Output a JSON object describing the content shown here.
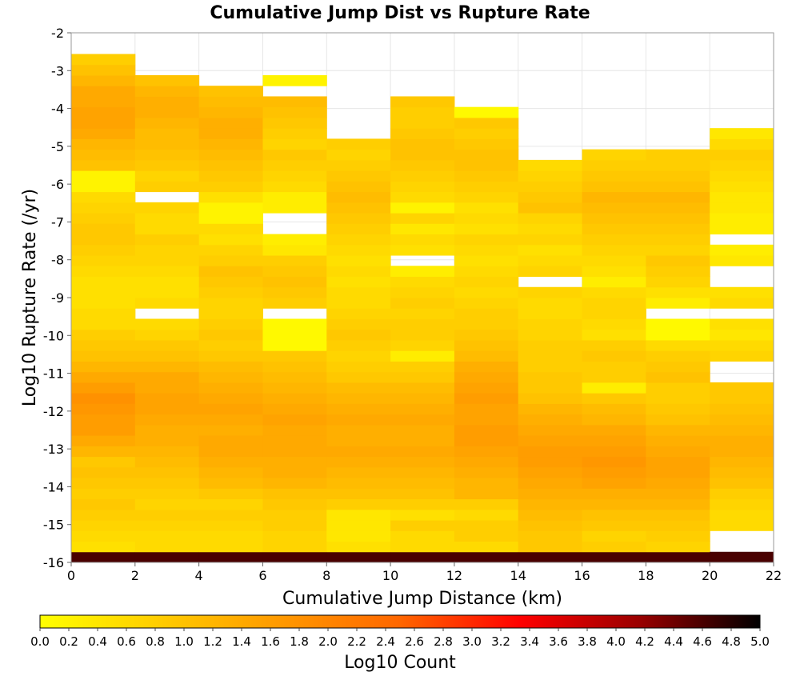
{
  "chart_data": {
    "type": "heatmap",
    "title": "Cumulative Jump Dist vs Rupture Rate",
    "xlabel": "Cumulative Jump Distance (km)",
    "ylabel": "Log10 Rupture Rate (/yr)",
    "xlim": [
      0,
      22
    ],
    "ylim": [
      -16,
      -2
    ],
    "x_ticks": [
      0,
      2,
      4,
      6,
      8,
      10,
      12,
      14,
      16,
      18,
      20,
      22
    ],
    "y_ticks": [
      -2,
      -3,
      -4,
      -5,
      -6,
      -7,
      -8,
      -9,
      -10,
      -11,
      -12,
      -13,
      -14,
      -15,
      -16
    ],
    "x_bin_width": 2,
    "y_bin_height": 0.28,
    "colorbar": {
      "label": "Log10 Count",
      "range": [
        0,
        5
      ],
      "ticks": [
        "0.0",
        "0.2",
        "0.4",
        "0.6",
        "0.8",
        "1.0",
        "1.2",
        "1.4",
        "1.6",
        "1.8",
        "2.0",
        "2.2",
        "2.4",
        "2.6",
        "2.8",
        "3.0",
        "3.2",
        "3.4",
        "3.6",
        "3.8",
        "4.0",
        "4.2",
        "4.4",
        "4.6",
        "4.8",
        "5.0"
      ],
      "colors": [
        "#ffff00",
        "#ffcc00",
        "#ff9900",
        "#ff6600",
        "#ff0000",
        "#990000",
        "#000000"
      ]
    },
    "columns": [
      {
        "x0": 0,
        "y_bottom": -16,
        "values": [
          4.6,
          0.5,
          0.6,
          0.7,
          0.8,
          0.9,
          0.8,
          0.9,
          1.0,
          0.9,
          1.2,
          1.4,
          1.6,
          1.6,
          1.7,
          1.8,
          1.6,
          1.4,
          1.2,
          1.0,
          0.9,
          0.8,
          0.6,
          0.6,
          0.5,
          0.5,
          0.5,
          0.6,
          0.7,
          0.8,
          0.9,
          0.9,
          0.8,
          0.7,
          0.6,
          0.2,
          0.2,
          1.0,
          1.1,
          1.2,
          1.4,
          1.5,
          1.5,
          1.4,
          1.4,
          1.2,
          1.0,
          0.8
        ]
      },
      {
        "x0": 2,
        "y_bottom": -16,
        "values": [
          4.6,
          0.6,
          0.6,
          0.7,
          0.8,
          0.7,
          0.8,
          0.9,
          1.0,
          1.1,
          1.2,
          1.3,
          1.3,
          1.4,
          1.5,
          1.5,
          1.4,
          1.4,
          1.2,
          1.0,
          0.9,
          0.7,
          0.6,
          null,
          0.6,
          0.5,
          0.5,
          0.6,
          0.7,
          0.7,
          0.8,
          0.6,
          0.6,
          0.7,
          null,
          0.8,
          0.7,
          0.9,
          1.0,
          1.1,
          1.1,
          1.2,
          1.3,
          1.3,
          1.2,
          1.0
        ]
      },
      {
        "x0": 4,
        "y_bottom": -16,
        "values": [
          4.6,
          0.6,
          0.6,
          0.7,
          0.8,
          0.7,
          0.9,
          1.1,
          1.2,
          1.3,
          1.4,
          1.4,
          1.3,
          1.4,
          1.5,
          1.4,
          1.3,
          1.2,
          1.1,
          0.9,
          0.8,
          0.9,
          0.8,
          0.7,
          0.7,
          0.8,
          0.9,
          1.0,
          0.8,
          0.7,
          0.5,
          0.6,
          0.2,
          0.2,
          0.5,
          0.8,
          0.9,
          1.0,
          1.1,
          1.2,
          1.3,
          1.3,
          1.2,
          1.1,
          1.0
        ]
      },
      {
        "x0": 6,
        "y_bottom": -16,
        "values": [
          4.6,
          0.7,
          0.7,
          0.8,
          0.8,
          0.9,
          1.0,
          1.2,
          1.3,
          1.3,
          1.4,
          1.4,
          1.4,
          1.5,
          1.4,
          1.3,
          1.2,
          1.1,
          1.0,
          0.9,
          0.1,
          0.1,
          0.1,
          null,
          0.8,
          0.9,
          1.0,
          0.9,
          0.8,
          0.4,
          0.3,
          null,
          null,
          0.3,
          0.3,
          0.6,
          0.7,
          0.8,
          0.9,
          0.7,
          0.8,
          0.9,
          1.0,
          1.1,
          null,
          0.2
        ]
      },
      {
        "x0": 8,
        "y_bottom": -16,
        "values": [
          4.6,
          0.5,
          0.4,
          0.4,
          0.4,
          0.8,
          1.0,
          1.1,
          1.2,
          1.3,
          1.4,
          1.3,
          1.3,
          1.4,
          1.3,
          1.2,
          1.1,
          0.9,
          0.8,
          0.7,
          0.8,
          0.9,
          0.8,
          0.7,
          0.6,
          0.6,
          0.5,
          0.6,
          0.5,
          0.6,
          0.7,
          0.8,
          0.9,
          1.0,
          1.1,
          1.0,
          0.9,
          0.8,
          0.7,
          0.8
        ]
      },
      {
        "x0": 10,
        "y_bottom": -16,
        "values": [
          4.6,
          0.6,
          0.6,
          0.8,
          0.5,
          0.8,
          1.0,
          1.1,
          1.2,
          1.3,
          1.4,
          1.3,
          1.3,
          1.4,
          1.3,
          1.2,
          1.1,
          0.9,
          0.8,
          0.3,
          0.7,
          0.8,
          0.8,
          0.7,
          0.8,
          0.7,
          0.6,
          0.3,
          null,
          0.5,
          0.6,
          0.4,
          0.7,
          0.2,
          0.6,
          0.7,
          0.8,
          0.9,
          1.0,
          1.0,
          0.9,
          0.8,
          0.8,
          0.9
        ]
      },
      {
        "x0": 12,
        "y_bottom": -16,
        "values": [
          4.6,
          0.6,
          0.8,
          0.8,
          0.6,
          0.8,
          1.2,
          1.2,
          1.3,
          1.4,
          1.5,
          1.6,
          1.6,
          1.5,
          1.5,
          1.6,
          1.5,
          1.4,
          1.3,
          1.1,
          1.0,
          0.9,
          0.8,
          0.8,
          0.7,
          0.6,
          0.7,
          0.6,
          0.5,
          0.6,
          0.7,
          0.5,
          0.6,
          0.5,
          0.7,
          0.8,
          0.9,
          1.0,
          1.0,
          0.9,
          0.8,
          0.9,
          0.1
        ]
      },
      {
        "x0": 14,
        "y_bottom": -16,
        "values": [
          4.6,
          0.9,
          0.9,
          1.0,
          1.1,
          1.2,
          1.3,
          1.4,
          1.5,
          1.6,
          1.6,
          1.5,
          1.4,
          1.3,
          1.2,
          1.0,
          0.9,
          0.9,
          0.8,
          0.8,
          0.8,
          0.7,
          0.7,
          0.6,
          0.6,
          0.7,
          null,
          0.7,
          0.6,
          0.5,
          0.7,
          0.6,
          0.7,
          1.0,
          0.9,
          0.8,
          0.7,
          0.6
        ]
      },
      {
        "x0": 16,
        "y_bottom": -16,
        "values": [
          4.6,
          0.8,
          0.7,
          0.9,
          1.0,
          1.2,
          1.3,
          1.5,
          1.6,
          1.7,
          1.6,
          1.5,
          1.4,
          1.2,
          1.1,
          0.9,
          0.3,
          0.8,
          0.8,
          0.9,
          0.8,
          0.5,
          0.6,
          0.7,
          0.7,
          0.6,
          0.3,
          0.5,
          0.6,
          0.7,
          0.8,
          0.9,
          1.0,
          1.1,
          1.2,
          1.0,
          0.9,
          0.8,
          0.7
        ]
      },
      {
        "x0": 18,
        "y_bottom": -16,
        "values": [
          4.6,
          0.7,
          0.8,
          0.9,
          1.0,
          1.2,
          1.3,
          1.4,
          1.5,
          1.5,
          1.4,
          1.3,
          1.2,
          1.0,
          0.9,
          0.8,
          0.8,
          1.0,
          0.9,
          0.8,
          0.6,
          0.1,
          0.1,
          null,
          0.3,
          0.5,
          0.7,
          0.8,
          0.9,
          0.7,
          0.8,
          0.9,
          1.0,
          1.1,
          1.2,
          1.0,
          0.9,
          0.8,
          0.8
        ]
      },
      {
        "x0": 20,
        "y_bottom": -16,
        "values": [
          4.6,
          null,
          null,
          0.6,
          0.6,
          0.7,
          0.8,
          1.0,
          1.1,
          1.2,
          1.3,
          1.3,
          1.2,
          1.1,
          1.0,
          0.9,
          0.9,
          null,
          null,
          0.7,
          0.6,
          0.4,
          0.5,
          null,
          0.6,
          0.5,
          null,
          null,
          0.4,
          0.3,
          null,
          0.3,
          0.3,
          0.4,
          0.4,
          0.5,
          0.6,
          0.7,
          0.8,
          0.6,
          0.4
        ]
      }
    ]
  }
}
